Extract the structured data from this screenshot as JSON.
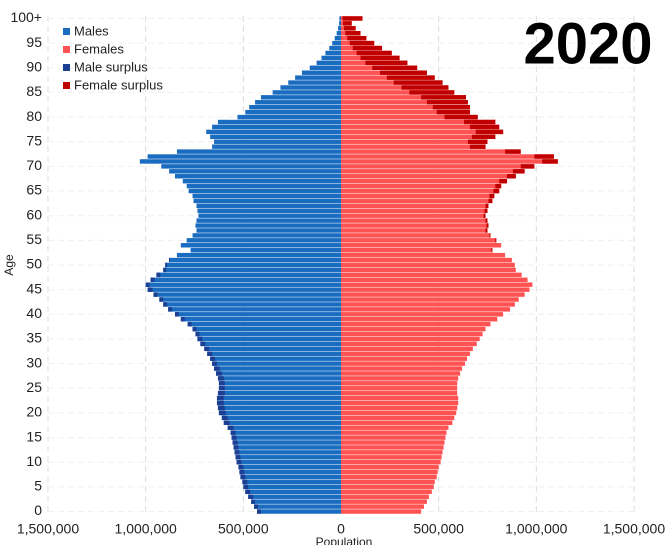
{
  "chart_data": {
    "type": "pyramid",
    "title": "2020",
    "xlabel": "Population",
    "ylabel": "Age",
    "y": [
      0,
      1,
      2,
      3,
      4,
      5,
      6,
      7,
      8,
      9,
      10,
      11,
      12,
      13,
      14,
      15,
      16,
      17,
      18,
      19,
      20,
      21,
      22,
      23,
      24,
      25,
      26,
      27,
      28,
      29,
      30,
      31,
      32,
      33,
      34,
      35,
      36,
      37,
      38,
      39,
      40,
      41,
      42,
      43,
      44,
      45,
      46,
      47,
      48,
      49,
      50,
      51,
      52,
      53,
      54,
      55,
      56,
      57,
      58,
      59,
      60,
      61,
      62,
      63,
      64,
      65,
      66,
      67,
      68,
      69,
      70,
      71,
      72,
      73,
      74,
      75,
      76,
      77,
      78,
      79,
      80,
      81,
      82,
      83,
      84,
      85,
      86,
      87,
      88,
      89,
      90,
      91,
      92,
      93,
      94,
      95,
      96,
      97,
      98,
      99,
      100
    ],
    "series": [
      {
        "name": "Males",
        "color": "#1a6cc0",
        "values": [
          430000,
          445000,
          460000,
          475000,
          490000,
          500000,
          505000,
          515000,
          520000,
          525000,
          535000,
          540000,
          545000,
          550000,
          555000,
          560000,
          565000,
          580000,
          600000,
          610000,
          625000,
          630000,
          635000,
          635000,
          630000,
          625000,
          625000,
          630000,
          640000,
          650000,
          660000,
          670000,
          685000,
          700000,
          720000,
          735000,
          745000,
          760000,
          785000,
          820000,
          850000,
          885000,
          910000,
          930000,
          960000,
          990000,
          1000000,
          975000,
          945000,
          910000,
          900000,
          880000,
          840000,
          770000,
          820000,
          790000,
          760000,
          740000,
          745000,
          740000,
          730000,
          735000,
          740000,
          755000,
          760000,
          780000,
          790000,
          810000,
          850000,
          880000,
          920000,
          1030000,
          990000,
          840000,
          660000,
          650000,
          670000,
          690000,
          660000,
          630000,
          530000,
          490000,
          470000,
          440000,
          410000,
          350000,
          310000,
          270000,
          235000,
          200000,
          160000,
          125000,
          100000,
          80000,
          60000,
          45000,
          32000,
          22000,
          15000,
          10000,
          8000
        ]
      },
      {
        "name": "Females",
        "color": "#ff5252",
        "values": [
          410000,
          425000,
          440000,
          450000,
          465000,
          475000,
          480000,
          490000,
          495000,
          500000,
          510000,
          515000,
          520000,
          525000,
          530000,
          535000,
          540000,
          550000,
          570000,
          580000,
          590000,
          595000,
          600000,
          600000,
          595000,
          595000,
          595000,
          600000,
          610000,
          620000,
          635000,
          645000,
          660000,
          675000,
          695000,
          710000,
          725000,
          740000,
          765000,
          800000,
          830000,
          865000,
          890000,
          910000,
          940000,
          965000,
          980000,
          955000,
          925000,
          895000,
          890000,
          875000,
          840000,
          775000,
          820000,
          795000,
          765000,
          750000,
          755000,
          750000,
          740000,
          750000,
          755000,
          775000,
          785000,
          810000,
          820000,
          850000,
          895000,
          940000,
          990000,
          1110000,
          1090000,
          920000,
          740000,
          750000,
          790000,
          830000,
          810000,
          790000,
          700000,
          660000,
          660000,
          650000,
          640000,
          580000,
          550000,
          520000,
          480000,
          440000,
          390000,
          340000,
          300000,
          260000,
          210000,
          170000,
          130000,
          100000,
          75000,
          55000,
          110000
        ]
      }
    ],
    "surplus": [
      {
        "name": "Male surplus",
        "color": "#1c3f94"
      },
      {
        "name": "Female surplus",
        "color": "#c00000"
      }
    ],
    "xlim": [
      -1500000,
      1500000
    ],
    "xticks": [
      {
        "value": -1500000,
        "label": "1,500,000"
      },
      {
        "value": -1000000,
        "label": "1,000,000"
      },
      {
        "value": -500000,
        "label": "500,000"
      },
      0,
      {
        "value": 500000,
        "label": "500,000"
      },
      {
        "value": 1000000,
        "label": "1,000,000"
      },
      {
        "value": 1500000,
        "label": "1,500,000"
      }
    ],
    "ylim": [
      -0.5,
      100.5
    ],
    "yticks": [
      0,
      5,
      10,
      15,
      20,
      25,
      30,
      35,
      40,
      45,
      50,
      55,
      60,
      65,
      70,
      75,
      80,
      85,
      90,
      95,
      {
        "value": 100,
        "label": "100+"
      }
    ],
    "grid": true
  }
}
